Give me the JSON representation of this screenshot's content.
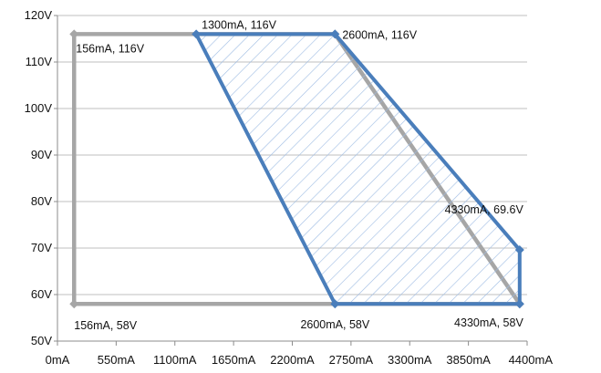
{
  "chart_data": {
    "type": "scatter",
    "title": "",
    "xlabel": "",
    "ylabel": "",
    "xlim": [
      0,
      4400
    ],
    "ylim": [
      50,
      120
    ],
    "x_ticks": [
      0,
      550,
      1100,
      1650,
      2200,
      2750,
      3300,
      3850,
      4400
    ],
    "y_ticks": [
      50,
      60,
      70,
      80,
      90,
      100,
      110,
      120
    ],
    "x_tick_labels": [
      "0mA",
      "550mA",
      "1100mA",
      "1650mA",
      "2200mA",
      "2750mA",
      "3300mA",
      "3850mA",
      "4400mA"
    ],
    "y_tick_labels": [
      "50V",
      "60V",
      "70V",
      "80V",
      "90V",
      "100V",
      "110V",
      "120V"
    ],
    "grid": "horizontal",
    "legend": "none",
    "series": [
      {
        "color": "#a6a6a6",
        "points": [
          [
            156,
            58
          ],
          [
            156,
            116
          ],
          [
            2600,
            116
          ],
          [
            4330,
            58
          ],
          [
            156,
            58
          ]
        ]
      },
      {
        "color": "#4a7ebb",
        "fill": "hatched",
        "points": [
          [
            1300,
            116
          ],
          [
            2600,
            116
          ],
          [
            4330,
            69.6
          ],
          [
            4330,
            58
          ],
          [
            2600,
            58
          ],
          [
            1300,
            116
          ]
        ]
      }
    ],
    "annotations": [
      {
        "text": "156mA, 116V",
        "x": 156,
        "y": 116
      },
      {
        "text": "1300mA, 116V",
        "x": 1300,
        "y": 116
      },
      {
        "text": "2600mA, 116V",
        "x": 2600,
        "y": 116
      },
      {
        "text": "4330mA, 69.6V",
        "x": 4330,
        "y": 69.6
      },
      {
        "text": "156mA, 58V",
        "x": 156,
        "y": 58
      },
      {
        "text": "2600mA, 58V",
        "x": 2600,
        "y": 58
      },
      {
        "text": "4330mA, 58V",
        "x": 4330,
        "y": 58
      }
    ]
  }
}
